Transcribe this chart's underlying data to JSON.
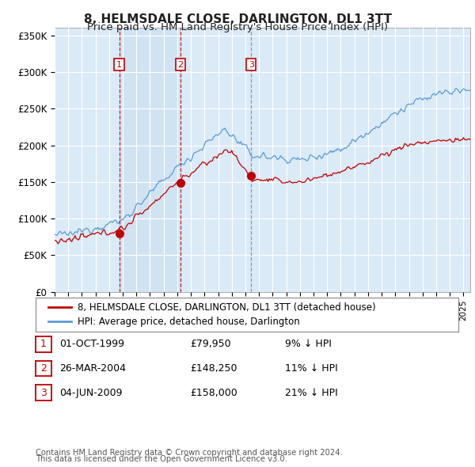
{
  "title": "8, HELMSDALE CLOSE, DARLINGTON, DL1 3TT",
  "subtitle": "Price paid vs. HM Land Registry's House Price Index (HPI)",
  "title_fontsize": 11,
  "subtitle_fontsize": 9.5,
  "ylim": [
    0,
    360000
  ],
  "yticks": [
    0,
    50000,
    100000,
    150000,
    200000,
    250000,
    300000,
    350000
  ],
  "ytick_labels": [
    "£0",
    "£50K",
    "£100K",
    "£150K",
    "£200K",
    "£250K",
    "£300K",
    "£350K"
  ],
  "background_color": "#daeaf7",
  "hpi_line_color": "#5b9bd5",
  "price_line_color": "#c00000",
  "sale_marker_color": "#c00000",
  "sale_label_color": "#c00000",
  "grid_color": "#ffffff",
  "sales": [
    {
      "date_num": 1999.75,
      "price": 79950,
      "label": "1",
      "vline_style": "dashed_red"
    },
    {
      "date_num": 2004.23,
      "price": 148250,
      "label": "2",
      "vline_style": "dashed_red"
    },
    {
      "date_num": 2009.42,
      "price": 158000,
      "label": "3",
      "vline_style": "dashed_gray"
    }
  ],
  "table_rows": [
    [
      "1",
      "01-OCT-1999",
      "£79,950",
      "9% ↓ HPI"
    ],
    [
      "2",
      "26-MAR-2004",
      "£148,250",
      "11% ↓ HPI"
    ],
    [
      "3",
      "04-JUN-2009",
      "£158,000",
      "21% ↓ HPI"
    ]
  ],
  "legend_entries": [
    "8, HELMSDALE CLOSE, DARLINGTON, DL1 3TT (detached house)",
    "HPI: Average price, detached house, Darlington"
  ],
  "footer_lines": [
    "Contains HM Land Registry data © Crown copyright and database right 2024.",
    "This data is licensed under the Open Government Licence v3.0."
  ],
  "xmin": 1995.0,
  "xmax": 2025.5
}
